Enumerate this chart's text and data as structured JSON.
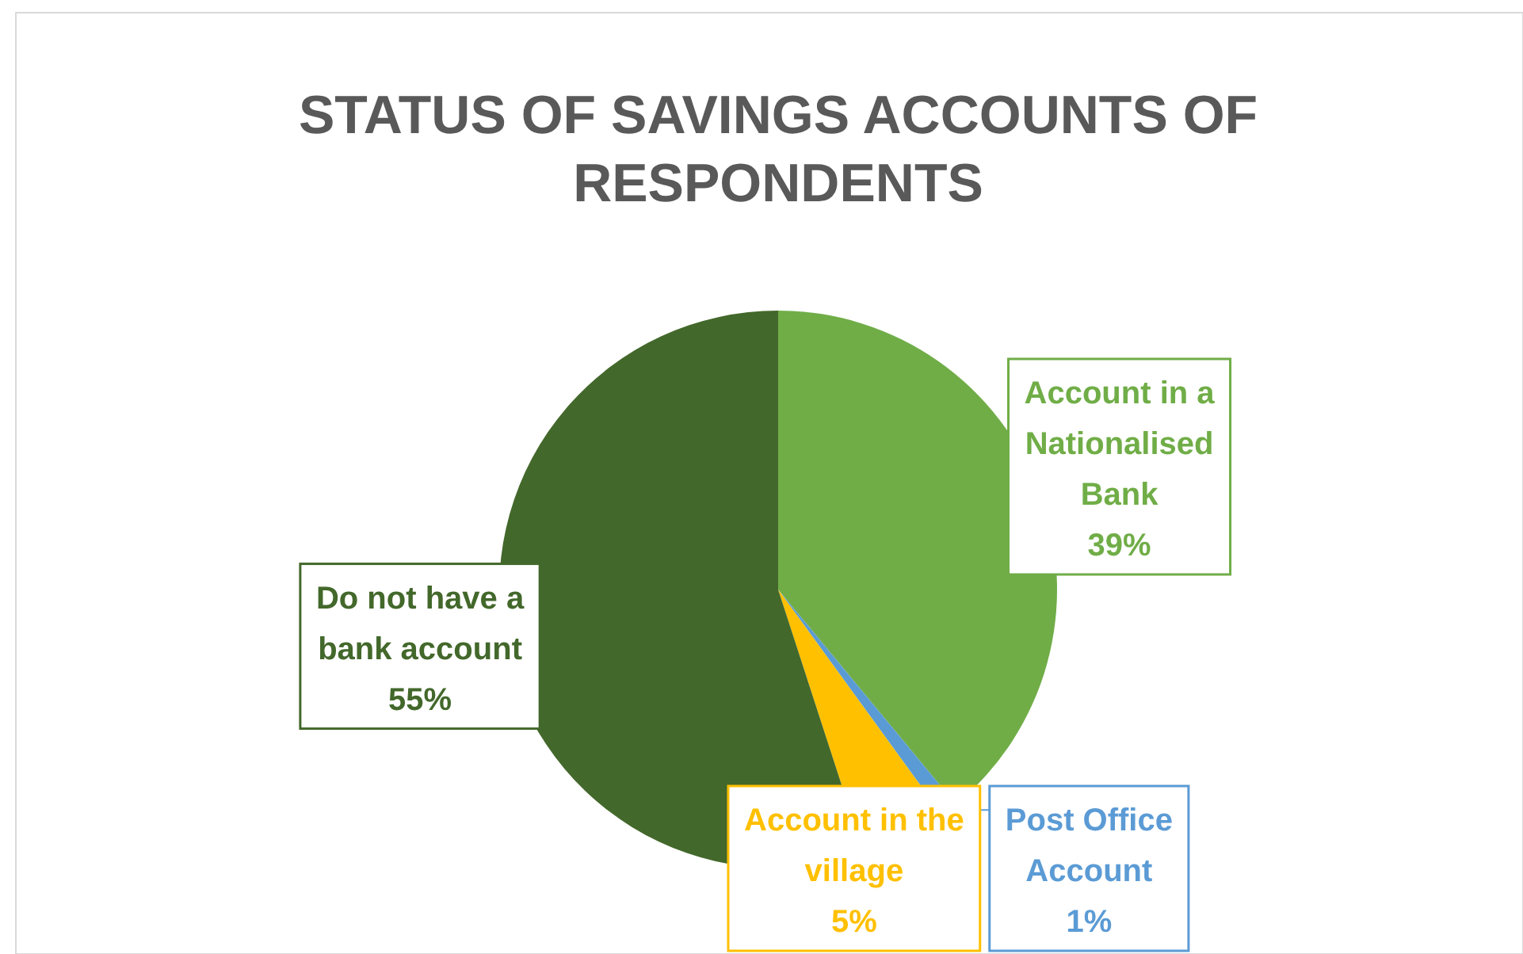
{
  "chart_data": {
    "type": "pie",
    "title": "STATUS OF SAVINGS ACCOUNTS OF RESPONDENTS",
    "categories": [
      "Account in a Nationalised Bank",
      "Post Office Account",
      "Account in the village",
      "Do not have a bank account"
    ],
    "values": [
      39,
      1,
      5,
      55
    ],
    "colors": [
      "#70ad47",
      "#5b9bd5",
      "#ffc000",
      "#43682b"
    ],
    "value_labels": [
      "39%",
      "1%",
      "5%",
      "55%"
    ]
  }
}
